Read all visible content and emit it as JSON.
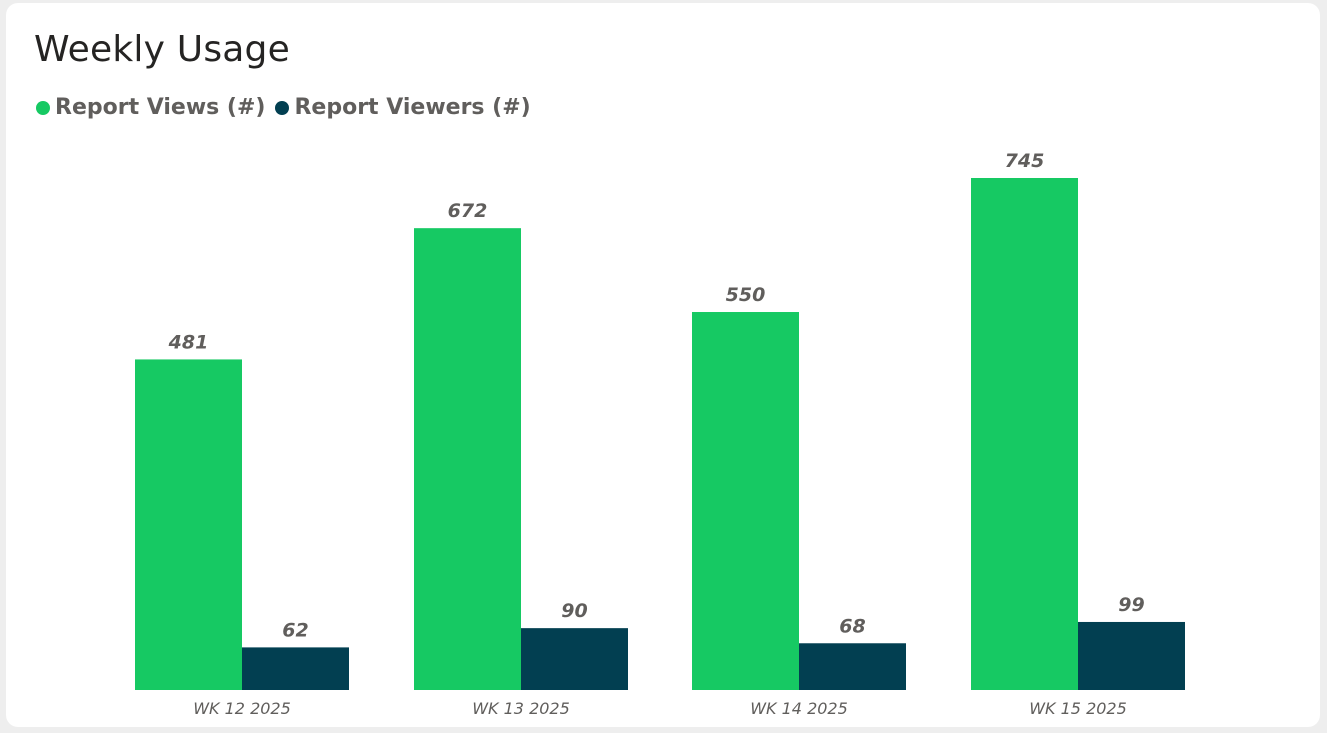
{
  "title": "Weekly Usage",
  "legend": {
    "items": [
      {
        "label": "Report Views (#)",
        "color": "#16c963"
      },
      {
        "label": "Report Viewers (#)",
        "color": "#023f51"
      }
    ]
  },
  "chart_data": {
    "type": "bar",
    "title": "Weekly Usage",
    "xlabel": "",
    "ylabel": "",
    "categories": [
      "WK 12 2025",
      "WK 13 2025",
      "WK 14 2025",
      "WK 15 2025"
    ],
    "series": [
      {
        "name": "Report Views (#)",
        "color": "#16c963",
        "values": [
          481,
          672,
          550,
          745
        ]
      },
      {
        "name": "Report Viewers (#)",
        "color": "#023f51",
        "values": [
          62,
          90,
          68,
          99
        ]
      }
    ],
    "ylim": [
      0,
      745
    ],
    "grid": false,
    "legend_position": "top-left",
    "data_labels": true
  }
}
